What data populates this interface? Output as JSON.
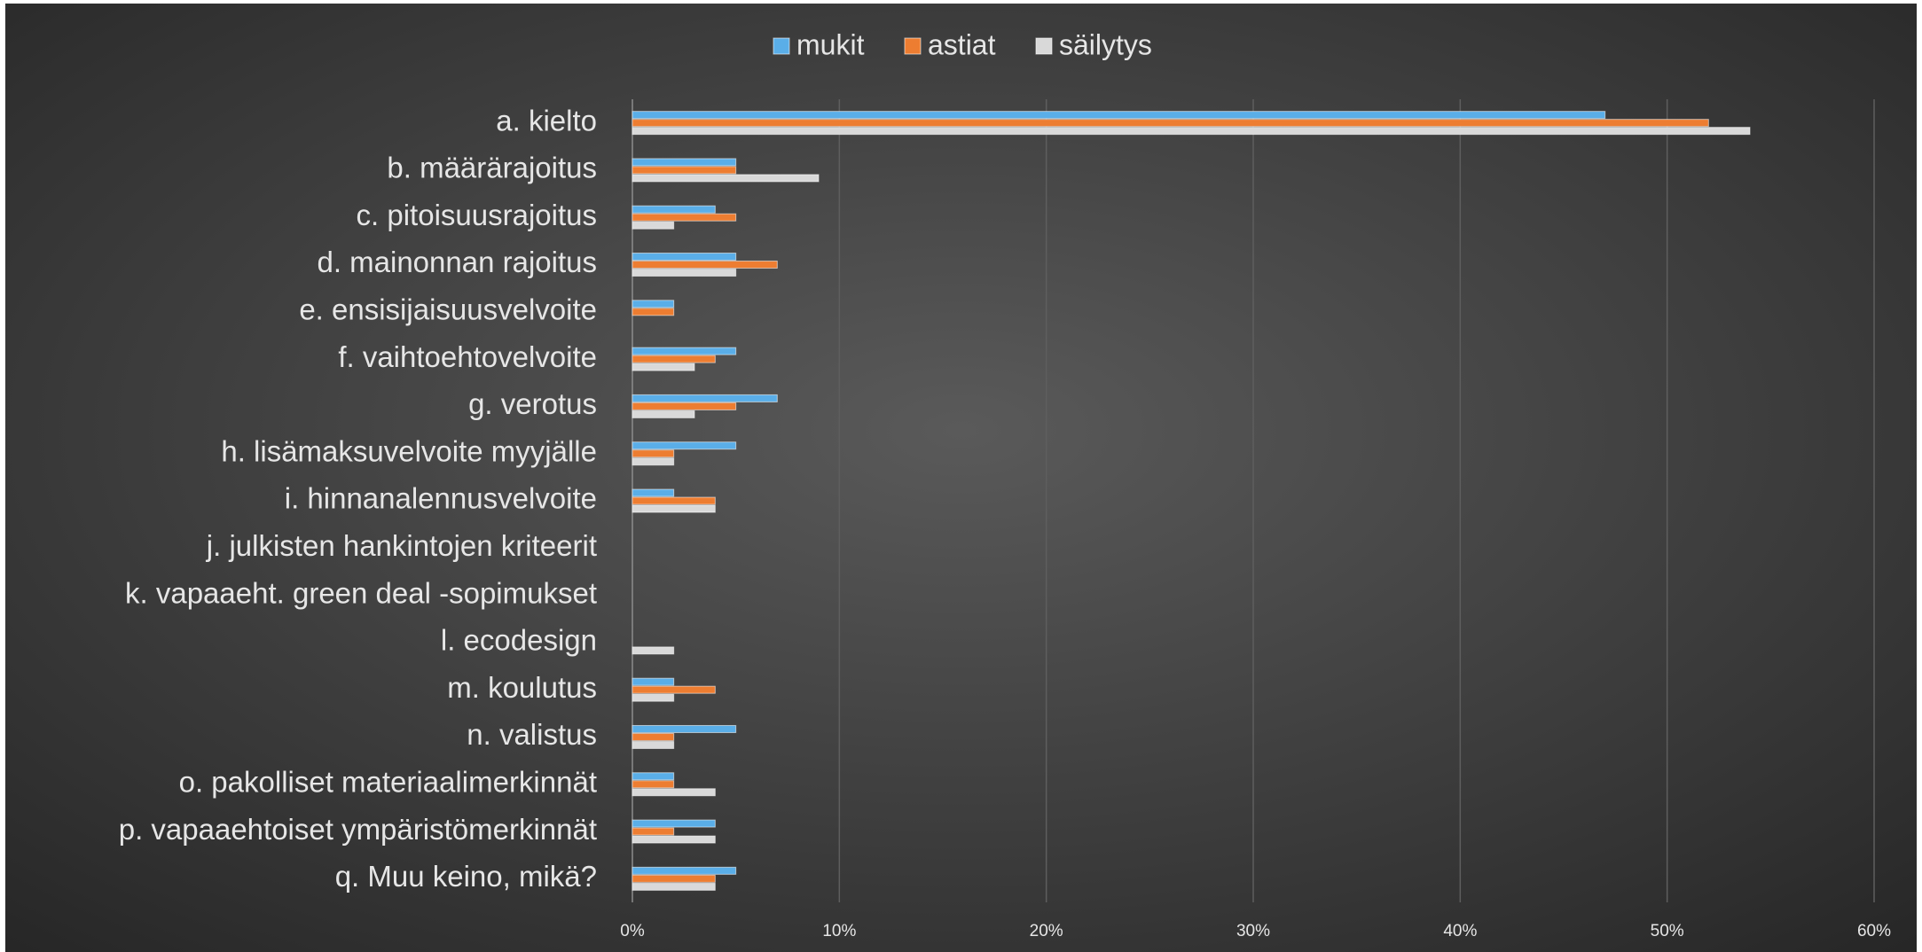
{
  "chart_data": {
    "type": "hbar",
    "categories": [
      "a. kielto",
      "b. määrärajoitus",
      "c. pitoisuusrajoitus",
      "d. mainonnan rajoitus",
      "e. ensisijaisuusvelvoite",
      "f. vaihtoehtovelvoite",
      "g. verotus",
      "h. lisämaksuvelvoite myyjälle",
      "i. hinnanalennusvelvoite",
      "j. julkisten hankintojen kriteerit",
      "k. vapaaeht. green deal -sopimukset",
      "l. ecodesign",
      "m. koulutus",
      "n. valistus",
      "o. pakolliset materiaalimerkinnät",
      "p. vapaaehtoiset ympäristömerkinnät",
      "q. Muu keino, mikä?"
    ],
    "series": [
      {
        "name": "mukit",
        "color": "#5aaee8",
        "values": [
          47,
          5,
          4,
          5,
          2,
          5,
          7,
          5,
          2,
          0,
          0,
          0,
          2,
          5,
          2,
          4,
          5
        ]
      },
      {
        "name": "astiat",
        "color": "#ed7d31",
        "values": [
          52,
          5,
          5,
          7,
          2,
          4,
          5,
          2,
          4,
          0,
          0,
          0,
          4,
          2,
          2,
          2,
          4
        ]
      },
      {
        "name": "säilytys",
        "color": "#d9d9d9",
        "values": [
          54,
          9,
          2,
          5,
          0,
          3,
          3,
          2,
          4,
          0,
          0,
          2,
          2,
          2,
          4,
          4,
          4
        ]
      }
    ],
    "xlim": [
      0,
      60
    ],
    "xticks": [
      {
        "value": 0,
        "label": "0%"
      },
      {
        "value": 10,
        "label": "10%"
      },
      {
        "value": 20,
        "label": "20%"
      },
      {
        "value": 30,
        "label": "30%"
      },
      {
        "value": 40,
        "label": "40%"
      },
      {
        "value": 50,
        "label": "50%"
      },
      {
        "value": 60,
        "label": "60%"
      }
    ],
    "grid": true,
    "legend": "top"
  }
}
